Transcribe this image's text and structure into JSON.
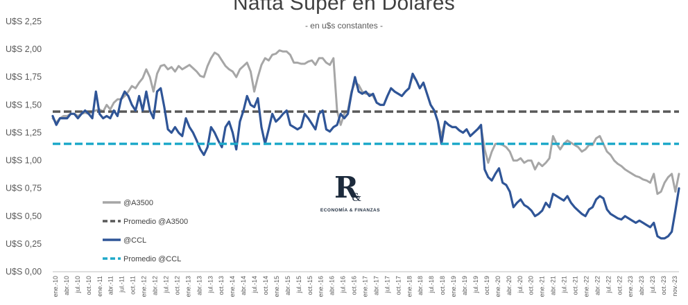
{
  "chart_data": {
    "type": "line",
    "title": "Nafta Súper en Dólares",
    "subtitle": "- en u$s constantes -",
    "ylim": [
      0,
      2.25
    ],
    "y_ticks": [
      0,
      0.25,
      0.5,
      0.75,
      1.0,
      1.25,
      1.5,
      1.75,
      2.0,
      2.25
    ],
    "y_tick_labels": [
      "U$S 0,00",
      "U$S 0,25",
      "U$S 0,50",
      "U$S 0,75",
      "U$S 1,00",
      "U$S 1,25",
      "U$S 1,50",
      "U$S 1,75",
      "U$S 2,00",
      "U$S 2,25"
    ],
    "x_tick_labels": [
      "ene.-10",
      "abr.-10",
      "jul.-10",
      "oct.-10",
      "ene.-11",
      "abr.-11",
      "jul.-11",
      "oct.-11",
      "ene.-12",
      "abr.-12",
      "jul.-12",
      "oct.-12",
      "ene.-13",
      "abr.-13",
      "jul.-13",
      "oct.-13",
      "ene.-14",
      "abr.-14",
      "jul.-14",
      "oct.-14",
      "ene.-15",
      "abr.-15",
      "jul.-15",
      "oct.-15",
      "ene.-16",
      "abr.-16",
      "jul.-16",
      "oct.-16",
      "ene.-17",
      "abr.-17",
      "jul.-17",
      "oct.-17",
      "ene.-18",
      "abr.-18",
      "jul.-18",
      "oct.-18",
      "ene.-19",
      "abr.-19",
      "jul.-19",
      "oct.-19",
      "ene.-20",
      "abr.-20",
      "jul.-20",
      "oct.-20",
      "ene.-21",
      "abr.-21",
      "jul.-21",
      "oct.-21",
      "ene.-22",
      "abr.-22",
      "jul.-22",
      "oct.-22",
      "ene.-23",
      "abr.-23",
      "jul.-23",
      "oct.-23",
      "nov.-23"
    ],
    "legend": [
      {
        "label": "@A3500",
        "color": "#a6a6a6",
        "dash": false
      },
      {
        "label": "Promedio @A3500",
        "color": "#595959",
        "dash": true
      },
      {
        "label": "@CCL",
        "color": "#2f5597",
        "dash": false
      },
      {
        "label": "Promedio @CCL",
        "color": "#1fa9c9",
        "dash": true
      }
    ],
    "legend_position": "bottom-left",
    "series": [
      {
        "name": "@A3500",
        "color": "#a6a6a6",
        "values": [
          1.38,
          1.34,
          1.38,
          1.4,
          1.4,
          1.42,
          1.42,
          1.4,
          1.42,
          1.43,
          1.42,
          1.44,
          1.45,
          1.46,
          1.44,
          1.5,
          1.46,
          1.52,
          1.55,
          1.55,
          1.58,
          1.62,
          1.67,
          1.65,
          1.7,
          1.74,
          1.82,
          1.75,
          1.62,
          1.78,
          1.85,
          1.86,
          1.82,
          1.84,
          1.8,
          1.85,
          1.82,
          1.84,
          1.86,
          1.83,
          1.8,
          1.76,
          1.75,
          1.85,
          1.92,
          1.97,
          1.95,
          1.9,
          1.85,
          1.82,
          1.8,
          1.75,
          1.82,
          1.85,
          1.88,
          1.8,
          1.62,
          1.75,
          1.86,
          1.92,
          1.9,
          1.95,
          1.96,
          1.99,
          1.98,
          1.98,
          1.95,
          1.88,
          1.88,
          1.87,
          1.87,
          1.89,
          1.9,
          1.86,
          1.92,
          1.92,
          1.88,
          1.86,
          1.92,
          1.45,
          1.32,
          1.42,
          1.45,
          1.62,
          1.7,
          1.68,
          1.62,
          1.6,
          1.6,
          1.58,
          1.52,
          1.5,
          1.5,
          1.58,
          1.65,
          1.62,
          1.6,
          1.58,
          1.62,
          1.65,
          1.76,
          1.72,
          1.65,
          1.7,
          1.6,
          1.5,
          1.45,
          1.35,
          1.22,
          1.35,
          1.32,
          1.3,
          1.3,
          1.27,
          1.25,
          1.28,
          1.22,
          1.25,
          1.28,
          1.3,
          1.1,
          0.98,
          1.08,
          1.15,
          1.15,
          1.14,
          1.12,
          1.08,
          1.0,
          1.0,
          1.02,
          0.98,
          1.0,
          1.0,
          0.92,
          0.98,
          0.95,
          0.98,
          1.02,
          1.22,
          1.15,
          1.1,
          1.15,
          1.18,
          1.16,
          1.14,
          1.12,
          1.08,
          1.1,
          1.14,
          1.14,
          1.2,
          1.22,
          1.15,
          1.08,
          1.05,
          1.0,
          0.97,
          0.95,
          0.92,
          0.9,
          0.88,
          0.86,
          0.85,
          0.83,
          0.82,
          0.8,
          0.88,
          0.7,
          0.72,
          0.8,
          0.85,
          0.88,
          0.72,
          0.88
        ]
      },
      {
        "name": "Promedio @A3500",
        "color": "#595959",
        "values": [
          1.44
        ]
      },
      {
        "name": "@CCL",
        "color": "#2f5597",
        "values": [
          1.4,
          1.32,
          1.38,
          1.38,
          1.38,
          1.42,
          1.42,
          1.38,
          1.42,
          1.45,
          1.42,
          1.38,
          1.62,
          1.42,
          1.38,
          1.4,
          1.38,
          1.45,
          1.4,
          1.55,
          1.62,
          1.58,
          1.5,
          1.45,
          1.58,
          1.45,
          1.62,
          1.45,
          1.38,
          1.62,
          1.65,
          1.48,
          1.28,
          1.25,
          1.3,
          1.25,
          1.22,
          1.38,
          1.3,
          1.25,
          1.18,
          1.1,
          1.05,
          1.12,
          1.3,
          1.25,
          1.18,
          1.12,
          1.3,
          1.35,
          1.25,
          1.1,
          1.35,
          1.45,
          1.58,
          1.5,
          1.48,
          1.56,
          1.3,
          1.15,
          1.28,
          1.42,
          1.35,
          1.38,
          1.42,
          1.45,
          1.32,
          1.3,
          1.28,
          1.3,
          1.42,
          1.38,
          1.33,
          1.28,
          1.42,
          1.45,
          1.28,
          1.26,
          1.3,
          1.32,
          1.42,
          1.38,
          1.42,
          1.6,
          1.75,
          1.62,
          1.6,
          1.62,
          1.58,
          1.6,
          1.52,
          1.5,
          1.5,
          1.58,
          1.65,
          1.62,
          1.6,
          1.58,
          1.62,
          1.65,
          1.78,
          1.72,
          1.65,
          1.7,
          1.6,
          1.5,
          1.45,
          1.35,
          1.15,
          1.35,
          1.32,
          1.3,
          1.3,
          1.27,
          1.25,
          1.28,
          1.22,
          1.25,
          1.28,
          1.32,
          0.92,
          0.85,
          0.82,
          0.88,
          0.93,
          0.8,
          0.78,
          0.72,
          0.58,
          0.62,
          0.65,
          0.6,
          0.58,
          0.55,
          0.5,
          0.52,
          0.55,
          0.62,
          0.58,
          0.7,
          0.68,
          0.66,
          0.64,
          0.68,
          0.62,
          0.58,
          0.55,
          0.52,
          0.5,
          0.56,
          0.58,
          0.65,
          0.68,
          0.66,
          0.56,
          0.52,
          0.5,
          0.48,
          0.47,
          0.5,
          0.48,
          0.46,
          0.44,
          0.46,
          0.44,
          0.42,
          0.4,
          0.44,
          0.32,
          0.3,
          0.3,
          0.32,
          0.36,
          0.55,
          0.75
        ]
      },
      {
        "name": "Promedio @CCL",
        "color": "#1fa9c9",
        "values": [
          1.15
        ]
      }
    ],
    "grid": false
  },
  "logo": {
    "mark": "R",
    "amp": "&",
    "tagline": "ECONOMÍA & FINANZAS"
  }
}
